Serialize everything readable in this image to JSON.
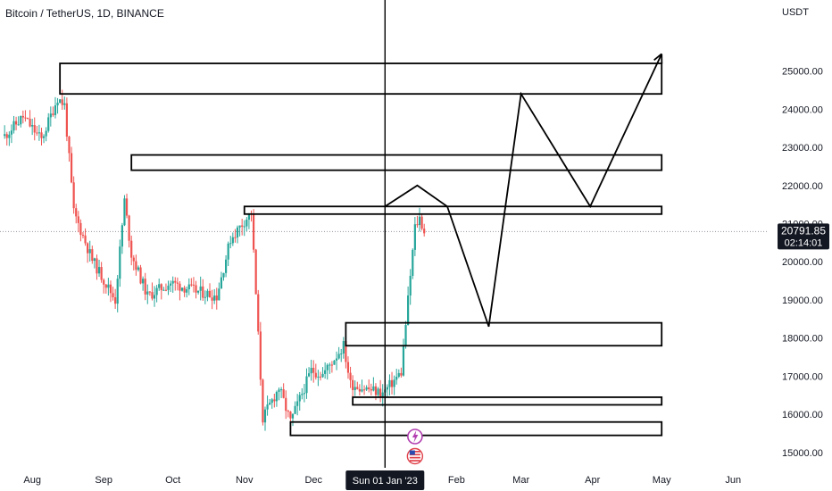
{
  "chart_data": {
    "type": "candlestick",
    "title": "Bitcoin / TetherUS, 1D, BINANCE",
    "y_unit_label": "USDT",
    "y_ticks": [
      25000,
      24000,
      23000,
      22000,
      21000,
      20000,
      19000,
      18000,
      17000,
      16000,
      15000
    ],
    "y_tick_labels": [
      "25000.00",
      "24000.00",
      "23000.00",
      "22000.00",
      "21000.00",
      "20000.00",
      "19000.00",
      "18000.00",
      "17000.00",
      "16000.00",
      "15000.00"
    ],
    "x_tick_labels": [
      "Aug",
      "Sep",
      "Oct",
      "Nov",
      "Dec",
      "Feb",
      "Mar",
      "Apr",
      "May",
      "Jun"
    ],
    "x_tick_dates": [
      "2022-08-01",
      "2022-09-01",
      "2022-10-01",
      "2022-11-01",
      "2022-12-01",
      "2023-02-01",
      "2023-03-01",
      "2023-04-01",
      "2023-05-01",
      "2023-06-01"
    ],
    "crosshair_date": "2023-01-01",
    "crosshair_label": "Sun 01 Jan '23",
    "last_price": 20791.85,
    "last_price_label": "20791.85",
    "countdown_label": "02:14:01",
    "up_color": "#26a69a",
    "down_color": "#ef5350",
    "close_path": [
      {
        "date": "2022-07-20",
        "close": 23300
      },
      {
        "date": "2022-07-28",
        "close": 23800
      },
      {
        "date": "2022-08-05",
        "close": 23200
      },
      {
        "date": "2022-08-12",
        "close": 24300
      },
      {
        "date": "2022-08-15",
        "close": 24100
      },
      {
        "date": "2022-08-19",
        "close": 21300
      },
      {
        "date": "2022-08-27",
        "close": 20050
      },
      {
        "date": "2022-09-06",
        "close": 19000
      },
      {
        "date": "2022-09-10",
        "close": 21600
      },
      {
        "date": "2022-09-13",
        "close": 20200
      },
      {
        "date": "2022-09-20",
        "close": 19100
      },
      {
        "date": "2022-09-30",
        "close": 19450
      },
      {
        "date": "2022-10-10",
        "close": 19250
      },
      {
        "date": "2022-10-20",
        "close": 19100
      },
      {
        "date": "2022-10-26",
        "close": 20600
      },
      {
        "date": "2022-11-04",
        "close": 21300
      },
      {
        "date": "2022-11-09",
        "close": 15900
      },
      {
        "date": "2022-11-16",
        "close": 16700
      },
      {
        "date": "2022-11-21",
        "close": 15800
      },
      {
        "date": "2022-11-30",
        "close": 17150
      },
      {
        "date": "2022-12-05",
        "close": 17050
      },
      {
        "date": "2022-12-14",
        "close": 17800
      },
      {
        "date": "2022-12-17",
        "close": 16800
      },
      {
        "date": "2022-12-31",
        "close": 16550
      },
      {
        "date": "2023-01-08",
        "close": 17100
      },
      {
        "date": "2023-01-14",
        "close": 20900
      },
      {
        "date": "2023-01-16",
        "close": 21150
      },
      {
        "date": "2023-01-18",
        "close": 20800
      }
    ],
    "zones": [
      {
        "start": "2022-08-13",
        "end": "2023-05-01",
        "low": 24400,
        "high": 25200
      },
      {
        "start": "2022-09-13",
        "end": "2023-05-01",
        "low": 22400,
        "high": 22800
      },
      {
        "start": "2022-11-01",
        "end": "2023-05-01",
        "low": 21250,
        "high": 21450
      },
      {
        "start": "2022-12-15",
        "end": "2023-05-01",
        "low": 17800,
        "high": 18400
      },
      {
        "start": "2022-12-18",
        "end": "2023-05-01",
        "low": 16250,
        "high": 16450
      },
      {
        "start": "2022-11-21",
        "end": "2023-05-01",
        "low": 15450,
        "high": 15800
      }
    ],
    "projection": [
      {
        "date": "2023-01-01",
        "value": 21450
      },
      {
        "date": "2023-01-15",
        "value": 22000
      },
      {
        "date": "2023-01-28",
        "value": 21450
      },
      {
        "date": "2023-02-15",
        "value": 18300
      },
      {
        "date": "2023-03-01",
        "value": 24400
      },
      {
        "date": "2023-03-31",
        "value": 21450
      },
      {
        "date": "2023-05-01",
        "value": 25450
      }
    ],
    "event_icons": [
      "lightning-icon",
      "us-flag-icon"
    ],
    "grid": false,
    "ylim": [
      14600,
      26300
    ],
    "xlim": [
      "2022-07-18",
      "2023-06-16"
    ]
  }
}
